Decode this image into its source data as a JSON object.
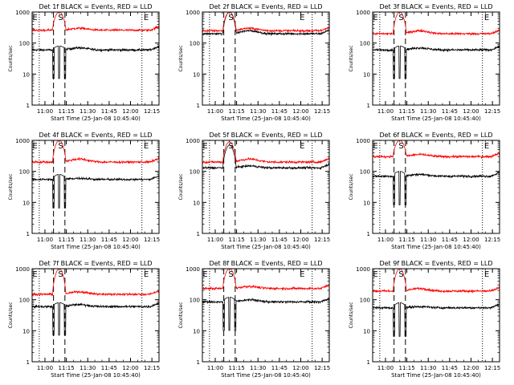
{
  "colors": {
    "events": "#000000",
    "lld": "#ff0000",
    "background": "#ffffff"
  },
  "chart_data": [
    {
      "type": "line",
      "title": "Det 1f BLACK = Events, RED = LLD",
      "xlabel": "Start Time (25-Jan-08 10:45:40)",
      "ylabel": "Counts/sec",
      "yscale": "log",
      "ylim": [
        1,
        1000
      ],
      "x_range": [
        "10:51",
        "12:20"
      ],
      "xticks": [
        "11:00",
        "11:15",
        "11:30",
        "11:45",
        "12:00",
        "12:15"
      ],
      "yticks": [
        "1",
        "10",
        "100",
        "1000"
      ],
      "markers": [
        {
          "label": "E",
          "x": "10:53"
        },
        {
          "label": "S",
          "x": "11:11"
        },
        {
          "label": "E",
          "x": "12:11"
        }
      ],
      "dotted_lines": [
        "10:56",
        "12:08"
      ],
      "dashed_lines": [
        "11:06",
        "11:14"
      ],
      "series": [
        {
          "name": "Events",
          "color": "#000000",
          "base": 60,
          "bump": 70,
          "spike_max": 80,
          "sep": 0,
          "low_spikes": []
        },
        {
          "name": "LLD",
          "color": "#ff0000",
          "base": 260,
          "bump": 300,
          "spike_max": 1000,
          "sep": 0,
          "low_spikes": []
        }
      ]
    },
    {
      "type": "line",
      "title": "Det 2f BLACK = Events, RED = LLD",
      "xlabel": "Start Time (25-Jan-08 10:45:40)",
      "ylabel": "Counts/sec",
      "yscale": "log",
      "ylim": [
        1,
        1000
      ],
      "x_range": [
        "10:51",
        "12:20"
      ],
      "xticks": [
        "11:00",
        "11:15",
        "11:30",
        "11:45",
        "12:00",
        "12:15"
      ],
      "yticks": [
        "1",
        "10",
        "100",
        "1000"
      ],
      "markers": [
        {
          "label": "S",
          "x": "11:11"
        },
        {
          "label": "E",
          "x": "12:01"
        }
      ],
      "dotted_lines": [
        "10:56",
        "12:08"
      ],
      "dashed_lines": [
        "11:06",
        "11:14"
      ],
      "series": [
        {
          "name": "Events",
          "color": "#000000",
          "base": 200,
          "bump": 250,
          "spike_max": 1000,
          "sep": 0,
          "low_spikes": []
        },
        {
          "name": "LLD",
          "color": "#ff0000",
          "base": 250,
          "bump": 300,
          "spike_max": 1000,
          "sep": 0,
          "low_spikes": []
        }
      ]
    },
    {
      "type": "line",
      "title": "Det 3f BLACK = Events, RED = LLD",
      "xlabel": "Start Time (25-Jan-08 10:45:40)",
      "ylabel": "Counts/sec",
      "yscale": "log",
      "ylim": [
        1,
        1000
      ],
      "x_range": [
        "10:51",
        "12:20"
      ],
      "xticks": [
        "11:00",
        "11:15",
        "11:30",
        "11:45",
        "12:00",
        "12:15"
      ],
      "yticks": [
        "1",
        "10",
        "100",
        "1000"
      ],
      "markers": [
        {
          "label": "E",
          "x": "10:53"
        },
        {
          "label": "S",
          "x": "11:11"
        },
        {
          "label": "E",
          "x": "12:11"
        }
      ],
      "dotted_lines": [
        "10:56",
        "12:08"
      ],
      "dashed_lines": [
        "11:06",
        "11:14"
      ],
      "series": [
        {
          "name": "Events",
          "color": "#000000",
          "base": 60,
          "bump": 70,
          "spike_max": 80,
          "sep": 0,
          "low_spikes": []
        },
        {
          "name": "LLD",
          "color": "#ff0000",
          "base": 200,
          "bump": 250,
          "spike_max": 1000,
          "sep": 0,
          "low_spikes": []
        }
      ]
    },
    {
      "type": "line",
      "title": "Det 4f BLACK = Events, RED = LLD",
      "xlabel": "Start Time (25-Jan-08 10:45:40)",
      "ylabel": "Counts/sec",
      "yscale": "log",
      "ylim": [
        1,
        1000
      ],
      "x_range": [
        "10:51",
        "12:20"
      ],
      "xticks": [
        "11:00",
        "11:15",
        "11:30",
        "11:45",
        "12:00",
        "12:15"
      ],
      "yticks": [
        "1",
        "10",
        "100",
        "1000"
      ],
      "markers": [
        {
          "label": "E",
          "x": "10:53"
        },
        {
          "label": "S",
          "x": "11:11"
        },
        {
          "label": "E",
          "x": "12:11"
        }
      ],
      "dotted_lines": [
        "10:56",
        "12:08"
      ],
      "dashed_lines": [
        "11:06",
        "11:14"
      ],
      "series": [
        {
          "name": "Events",
          "color": "#000000",
          "base": 55,
          "bump": 60,
          "spike_max": 80,
          "sep": 0,
          "low_spikes": []
        },
        {
          "name": "LLD",
          "color": "#ff0000",
          "base": 200,
          "bump": 250,
          "spike_max": 1000,
          "sep": 0,
          "low_spikes": []
        }
      ]
    },
    {
      "type": "line",
      "title": "Det 5f BLACK = Events, RED = LLD",
      "xlabel": "Start Time (25-Jan-08 10:45:40)",
      "ylabel": "Counts/sec",
      "yscale": "log",
      "ylim": [
        1,
        1000
      ],
      "x_range": [
        "10:51",
        "12:20"
      ],
      "xticks": [
        "11:00",
        "11:15",
        "11:30",
        "11:45",
        "12:00",
        "12:15"
      ],
      "yticks": [
        "1",
        "10",
        "100",
        "1000"
      ],
      "markers": [
        {
          "label": "E",
          "x": "10:53"
        },
        {
          "label": "S",
          "x": "11:11"
        },
        {
          "label": "E",
          "x": "12:01"
        }
      ],
      "dotted_lines": [
        "10:56",
        "12:08"
      ],
      "dashed_lines": [
        "11:06",
        "11:14"
      ],
      "series": [
        {
          "name": "Events",
          "color": "#000000",
          "base": 130,
          "bump": 150,
          "spike_max": 700,
          "sep": 0,
          "low_spikes": []
        },
        {
          "name": "LLD",
          "color": "#ff0000",
          "base": 200,
          "bump": 250,
          "spike_max": 900,
          "sep": 0,
          "low_spikes": []
        }
      ]
    },
    {
      "type": "line",
      "title": "Det 6f BLACK = Events, RED = LLD",
      "xlabel": "Start Time (25-Jan-08 10:45:40)",
      "ylabel": "Counts/sec",
      "yscale": "log",
      "ylim": [
        1,
        1000
      ],
      "x_range": [
        "10:51",
        "12:20"
      ],
      "xticks": [
        "11:00",
        "11:15",
        "11:30",
        "11:45",
        "12:00",
        "12:15"
      ],
      "yticks": [
        "1",
        "10",
        "100",
        "1000"
      ],
      "markers": [
        {
          "label": "E",
          "x": "10:53"
        },
        {
          "label": "S",
          "x": "11:11"
        },
        {
          "label": "E",
          "x": "12:11"
        }
      ],
      "dotted_lines": [
        "10:56",
        "12:08"
      ],
      "dashed_lines": [
        "11:06",
        "11:14"
      ],
      "series": [
        {
          "name": "Events",
          "color": "#000000",
          "base": 70,
          "bump": 80,
          "spike_max": 100,
          "sep": 0,
          "low_spikes": []
        },
        {
          "name": "LLD",
          "color": "#ff0000",
          "base": 300,
          "bump": 350,
          "spike_max": 1000,
          "sep": 0,
          "low_spikes": []
        }
      ]
    },
    {
      "type": "line",
      "title": "Det 7f BLACK = Events, RED = LLD",
      "xlabel": "Start Time (25-Jan-08 10:45:40)",
      "ylabel": "Counts/sec",
      "yscale": "log",
      "ylim": [
        1,
        1000
      ],
      "x_range": [
        "10:51",
        "12:20"
      ],
      "xticks": [
        "11:00",
        "11:15",
        "11:30",
        "11:45",
        "12:00",
        "12:15"
      ],
      "yticks": [
        "1",
        "10",
        "100",
        "1000"
      ],
      "markers": [
        {
          "label": "E",
          "x": "10:53"
        },
        {
          "label": "S",
          "x": "11:11"
        },
        {
          "label": "E",
          "x": "12:11"
        }
      ],
      "dotted_lines": [
        "10:56",
        "12:08"
      ],
      "dashed_lines": [
        "11:06",
        "11:14"
      ],
      "series": [
        {
          "name": "Events",
          "color": "#000000",
          "base": 60,
          "bump": 70,
          "spike_max": 80,
          "sep": 0,
          "low_spikes": []
        },
        {
          "name": "LLD",
          "color": "#ff0000",
          "base": 150,
          "bump": 180,
          "spike_max": 1000,
          "sep": 0,
          "low_spikes": []
        }
      ]
    },
    {
      "type": "line",
      "title": "Det 8f BLACK = Events, RED = LLD",
      "xlabel": "Start Time (25-Jan-08 10:45:40)",
      "ylabel": "Counts/sec",
      "yscale": "log",
      "ylim": [
        1,
        1000
      ],
      "x_range": [
        "10:51",
        "12:20"
      ],
      "xticks": [
        "11:00",
        "11:15",
        "11:30",
        "11:45",
        "12:00",
        "12:15"
      ],
      "yticks": [
        "1",
        "10",
        "100",
        "1000"
      ],
      "markers": [
        {
          "label": "E",
          "x": "10:53"
        },
        {
          "label": "S",
          "x": "11:11"
        },
        {
          "label": "E",
          "x": "12:01"
        }
      ],
      "dotted_lines": [
        "10:56",
        "12:08"
      ],
      "dashed_lines": [
        "11:06",
        "11:14"
      ],
      "series": [
        {
          "name": "Events",
          "color": "#000000",
          "base": 85,
          "bump": 100,
          "spike_max": 120,
          "sep": 0,
          "low_spikes": []
        },
        {
          "name": "LLD",
          "color": "#ff0000",
          "base": 230,
          "bump": 270,
          "spike_max": 1000,
          "sep": 0,
          "low_spikes": []
        }
      ]
    },
    {
      "type": "line",
      "title": "Det 9f BLACK = Events, RED = LLD",
      "xlabel": "Start Time (25-Jan-08 10:45:40)",
      "ylabel": "Counts/sec",
      "yscale": "log",
      "ylim": [
        1,
        1000
      ],
      "x_range": [
        "10:51",
        "12:20"
      ],
      "xticks": [
        "11:00",
        "11:15",
        "11:30",
        "11:45",
        "12:00",
        "12:15"
      ],
      "yticks": [
        "1",
        "10",
        "100",
        "1000"
      ],
      "markers": [
        {
          "label": "E",
          "x": "10:53"
        },
        {
          "label": "S",
          "x": "11:11"
        },
        {
          "label": "E",
          "x": "12:11"
        }
      ],
      "dotted_lines": [
        "10:56",
        "12:08"
      ],
      "dashed_lines": [
        "11:06",
        "11:14"
      ],
      "series": [
        {
          "name": "Events",
          "color": "#000000",
          "base": 55,
          "bump": 60,
          "spike_max": 80,
          "sep": 0,
          "low_spikes": []
        },
        {
          "name": "LLD",
          "color": "#ff0000",
          "base": 190,
          "bump": 230,
          "spike_max": 1000,
          "sep": 0,
          "low_spikes": []
        }
      ]
    }
  ]
}
